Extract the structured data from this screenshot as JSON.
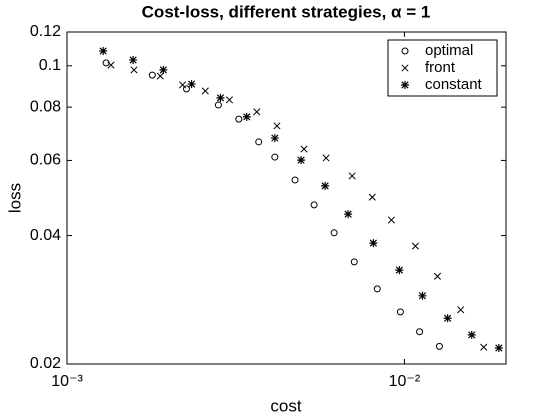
{
  "chart_data": {
    "type": "scatter",
    "title": "Cost-loss, different strategies, α = 1",
    "xlabel": "cost",
    "ylabel": "loss",
    "xscale": "log",
    "yscale": "log",
    "xlim": [
      0.001,
      0.02
    ],
    "ylim": [
      0.02,
      0.12
    ],
    "xticks": [
      {
        "value": 0.001,
        "label": "10⁻³"
      },
      {
        "value": 0.01,
        "label": "10⁻²"
      }
    ],
    "yticks": [
      0.02,
      0.04,
      0.06,
      0.08,
      0.1,
      0.12
    ],
    "grid": false,
    "legend": "northeast",
    "series": [
      {
        "name": "optimal",
        "marker": "o",
        "color": "#000000",
        "x": [
          0.001306,
          0.00179,
          0.00226,
          0.00281,
          0.00323,
          0.0037,
          0.00413,
          0.00474,
          0.0054,
          0.00619,
          0.0071,
          0.00831,
          0.00973,
          0.01109,
          0.0127
        ],
        "values": [
          0.1016,
          0.0951,
          0.0883,
          0.0809,
          0.075,
          0.0663,
          0.0611,
          0.054,
          0.0472,
          0.0406,
          0.0347,
          0.03,
          0.0265,
          0.0238,
          0.022
        ]
      },
      {
        "name": "front",
        "marker": "x",
        "color": "#000000",
        "x": [
          0.00135,
          0.00158,
          0.00189,
          0.0022,
          0.00257,
          0.00303,
          0.00365,
          0.00419,
          0.00504,
          0.00586,
          0.007,
          0.00803,
          0.00915,
          0.01078,
          0.01253,
          0.01468,
          0.01718
        ],
        "values": [
          0.1004,
          0.0978,
          0.0946,
          0.0902,
          0.0873,
          0.0832,
          0.078,
          0.0723,
          0.0638,
          0.0608,
          0.0552,
          0.0492,
          0.0435,
          0.0378,
          0.0321,
          0.0268,
          0.0219
        ]
      },
      {
        "name": "constant",
        "marker": "*",
        "color": "#000000",
        "x": [
          0.00128,
          0.00157,
          0.00193,
          0.00234,
          0.00285,
          0.00341,
          0.00413,
          0.00494,
          0.00582,
          0.00681,
          0.00809,
          0.00966,
          0.01131,
          0.01343,
          0.01583,
          0.01905
        ],
        "values": [
          0.1083,
          0.1032,
          0.0978,
          0.0906,
          0.0841,
          0.0759,
          0.0677,
          0.0601,
          0.0523,
          0.0449,
          0.0384,
          0.0332,
          0.0289,
          0.0256,
          0.0234,
          0.0218
        ]
      }
    ]
  }
}
